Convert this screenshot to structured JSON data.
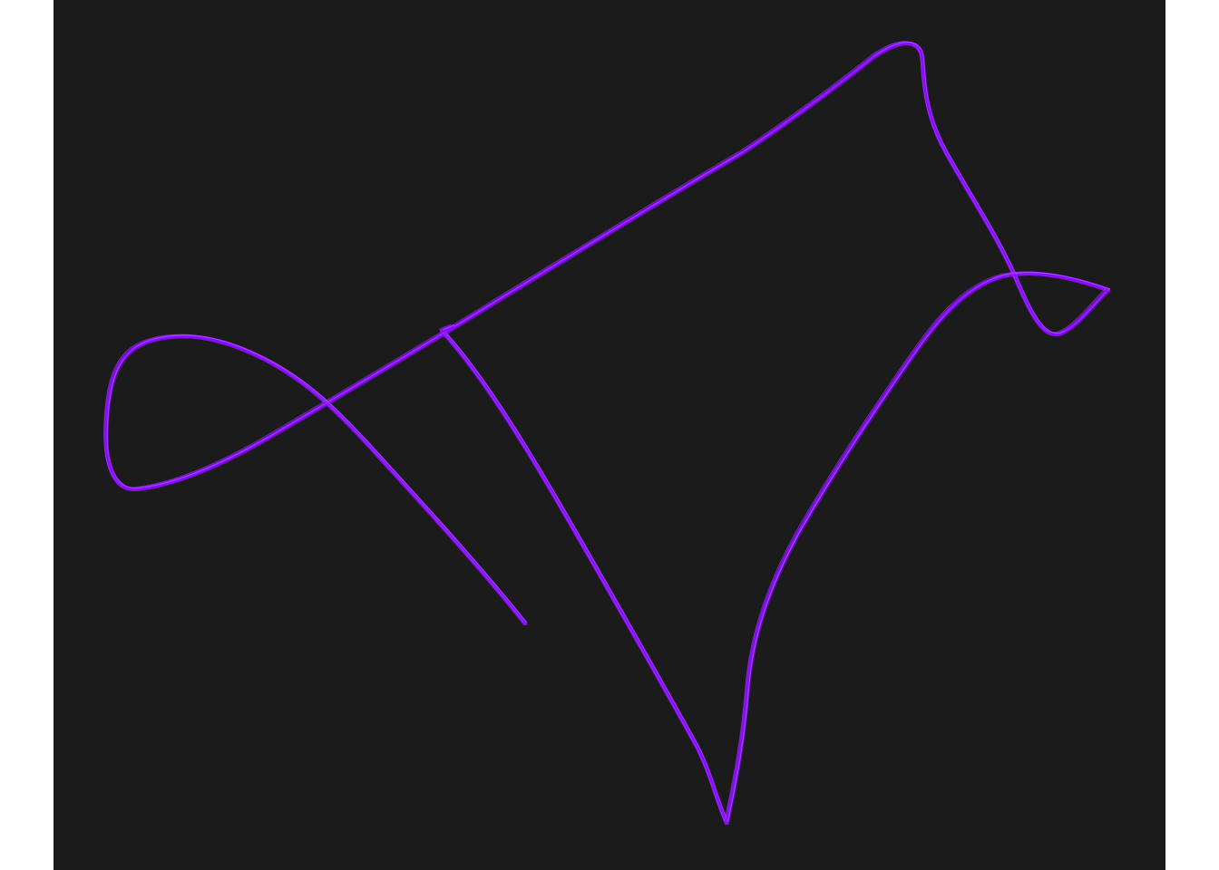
{
  "sketch": {
    "background_color": "#1b1b1c",
    "page_color": "#ffffff",
    "stroke_color": "#8a0bff",
    "stroke_highlight_color": "#a64dff"
  }
}
